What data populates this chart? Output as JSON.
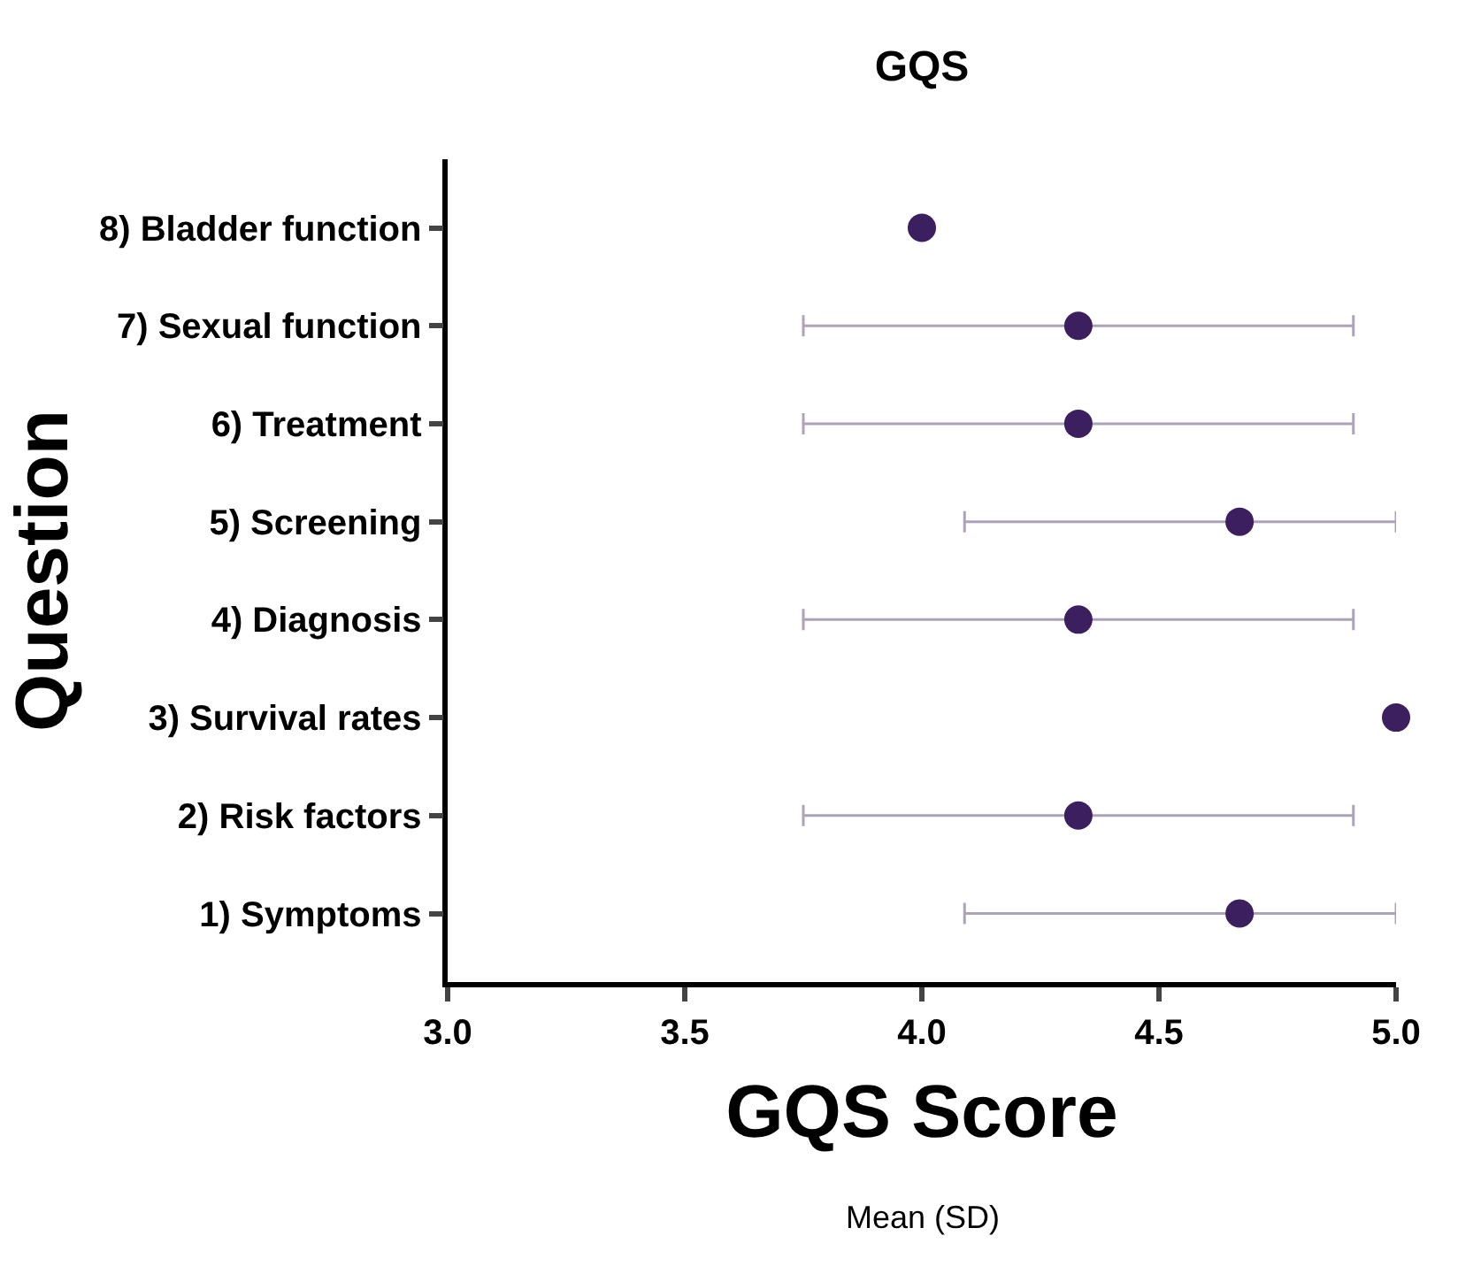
{
  "chart_data": {
    "type": "scatter",
    "orientation": "horizontal",
    "title": "GQS",
    "xlabel": "GQS Score",
    "ylabel": "Question",
    "categories": [
      "8) Bladder function",
      "7) Sexual function",
      "6) Treatment",
      "5) Screening",
      "4) Diagnosis",
      "3) Survival rates",
      "2) Risk factors",
      "1) Symptoms"
    ],
    "series": [
      {
        "color": "#3b1f5e",
        "values": [
          4.0,
          4.33,
          4.33,
          4.67,
          4.33,
          5.0,
          4.33,
          4.67
        ],
        "errors": [
          null,
          [
            3.75,
            4.91
          ],
          [
            3.75,
            4.91
          ],
          [
            4.09,
            5.0
          ],
          [
            3.75,
            4.91
          ],
          null,
          [
            3.75,
            4.91
          ],
          [
            4.09,
            5.0
          ]
        ]
      }
    ],
    "xlim": [
      3.0,
      5.0
    ],
    "xticks": [
      {
        "value": 3,
        "label": "3.0"
      },
      3.5,
      {
        "value": 4,
        "label": "4.0"
      },
      4.5,
      {
        "value": 5,
        "label": "5.0"
      }
    ],
    "marker": "circle",
    "annotations": [
      "Mean (SD)"
    ]
  }
}
